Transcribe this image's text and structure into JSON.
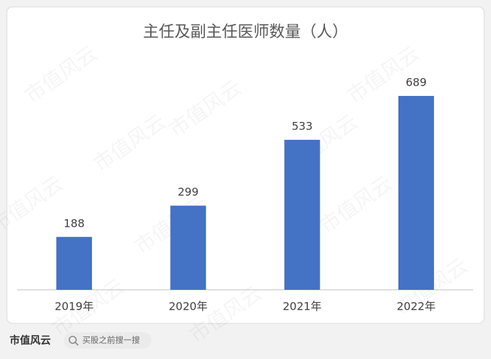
{
  "chart_data": {
    "type": "bar",
    "title": "主任及副主任医师数量（人）",
    "categories": [
      "2019年",
      "2020年",
      "2021年",
      "2022年"
    ],
    "values": [
      188,
      299,
      533,
      689
    ],
    "color": "#4472c4"
  },
  "watermark": "市值风云",
  "footer": {
    "brand": "市值风云",
    "search": "买股之前搜一搜"
  }
}
